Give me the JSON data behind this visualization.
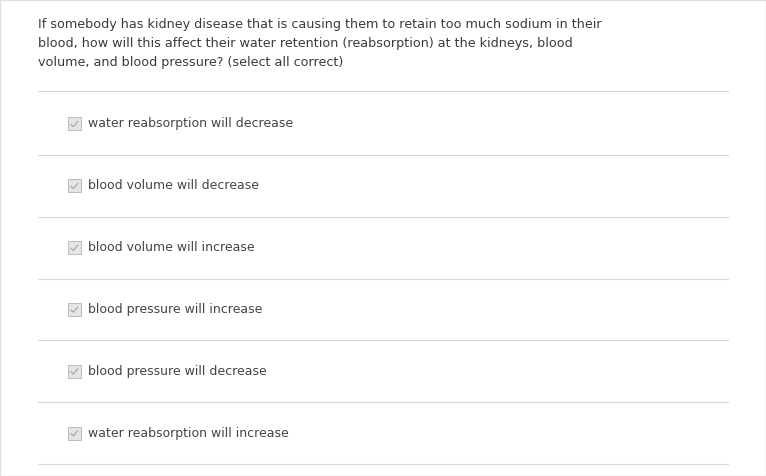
{
  "question_lines": [
    "If somebody has kidney disease that is causing them to retain too much sodium in their",
    "blood, how will this affect their water retention (reabsorption) at the kidneys, blood",
    "volume, and blood pressure? (select all correct)"
  ],
  "options": [
    "water reabsorption will decrease",
    "blood volume will decrease",
    "blood volume will increase",
    "blood pressure will increase",
    "blood pressure will decrease",
    "water reabsorption will increase"
  ],
  "bg_color": "#ffffff",
  "outer_bg": "#f5f5f5",
  "question_color": "#3a3a3a",
  "option_color": "#444444",
  "line_color": "#d8d8d8",
  "checkbox_bg": "#e5e5e5",
  "checkbox_border": "#bbbbbb",
  "checkbox_check_color": "#aaaaaa",
  "question_fontsize": 9.2,
  "option_fontsize": 9.0,
  "figwidth": 7.66,
  "figheight": 4.76,
  "dpi": 100
}
